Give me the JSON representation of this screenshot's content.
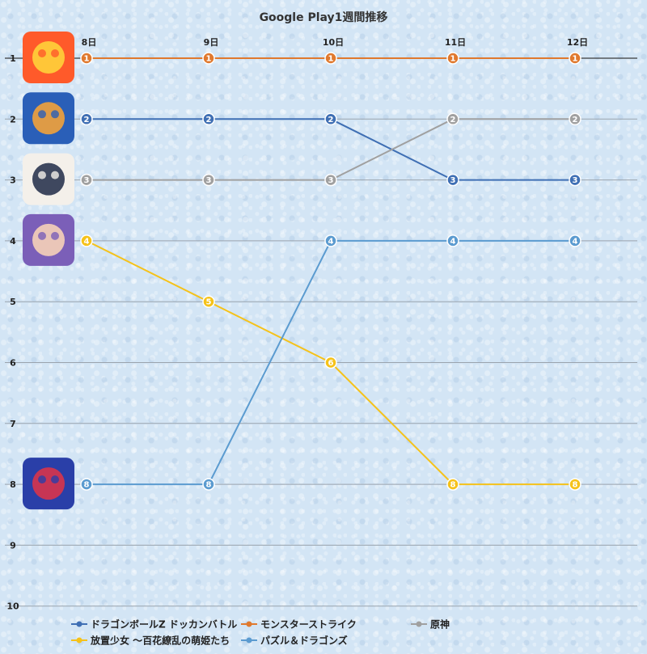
{
  "chart_data": {
    "type": "line",
    "title": "Google Play1週間推移",
    "categories": [
      "8日",
      "9日",
      "10日",
      "11日",
      "12日"
    ],
    "y_ticks": [
      "1",
      "2",
      "3",
      "4",
      "5",
      "6",
      "7",
      "8",
      "9",
      "10"
    ],
    "ylim": [
      1,
      10
    ],
    "y_inverted": true,
    "grid": true,
    "legend_position": "bottom",
    "series": [
      {
        "name": "ドラゴンボールZ ドッカンバトル",
        "values": [
          2,
          2,
          2,
          3,
          3
        ],
        "color": "#3f6fb4",
        "icon": "dragon-ball-app-icon"
      },
      {
        "name": "モンスターストライク",
        "values": [
          1,
          1,
          1,
          1,
          1
        ],
        "color": "#e0792e",
        "icon": "monster-strike-app-icon"
      },
      {
        "name": "原神",
        "values": [
          3,
          3,
          3,
          2,
          2
        ],
        "color": "#a0a0a0",
        "icon": "genshin-app-icon"
      },
      {
        "name": "放置少女 ～百花繚乱の萌姫たち",
        "values": [
          4,
          5,
          6,
          8,
          8
        ],
        "color": "#f5c21a",
        "icon": "houchi-shoujo-app-icon"
      },
      {
        "name": "パズル＆ドラゴンズ",
        "values": [
          8,
          8,
          4,
          4,
          4
        ],
        "color": "#5b9bd0",
        "icon": "puzzle-dragons-app-icon"
      }
    ]
  }
}
